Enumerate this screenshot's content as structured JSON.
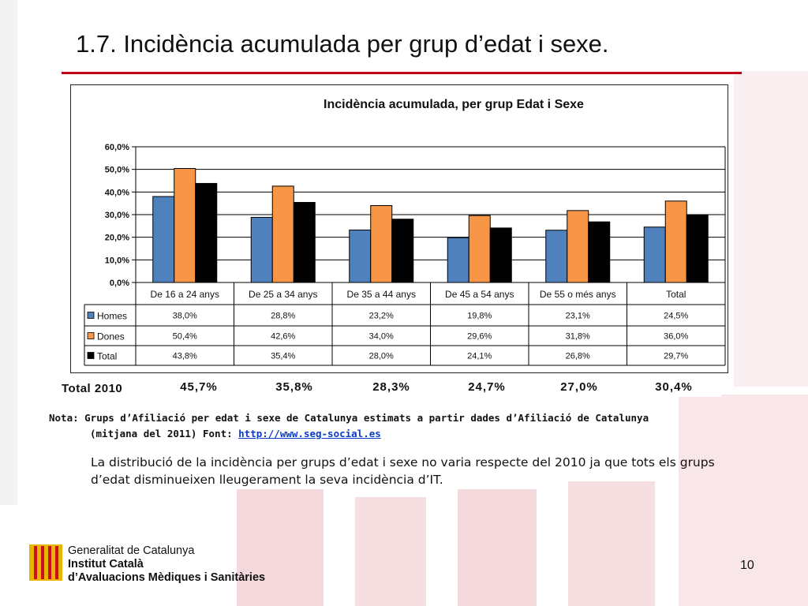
{
  "slide": {
    "title": "1.7. Incidència acumulada per grup d’edat i sexe.",
    "page_number": "10",
    "accent_color": "#c00018"
  },
  "chart_data": {
    "type": "bar",
    "title": "Incidència acumulada, per grup Edat i Sexe",
    "categories": [
      "De 16 a 24 anys",
      "De 25 a 34 anys",
      "De 35 a 44 anys",
      "De 45 a 54 anys",
      "De 55 o més anys",
      "Total"
    ],
    "series": [
      {
        "name": "Homes",
        "color": "#4f81bd",
        "values": [
          38.0,
          28.8,
          23.2,
          19.8,
          23.1,
          24.5
        ],
        "labels": [
          "38,0%",
          "28,8%",
          "23,2%",
          "19,8%",
          "23,1%",
          "24,5%"
        ]
      },
      {
        "name": "Dones",
        "color": "#f79646",
        "values": [
          50.4,
          42.6,
          34.0,
          29.6,
          31.8,
          36.0
        ],
        "labels": [
          "50,4%",
          "42,6%",
          "34,0%",
          "29,6%",
          "31,8%",
          "36,0%"
        ]
      },
      {
        "name": "Total",
        "color": "#000000",
        "values": [
          43.8,
          35.4,
          28.0,
          24.1,
          26.8,
          29.7
        ],
        "labels": [
          "43,8%",
          "35,4%",
          "28,0%",
          "24,1%",
          "26,8%",
          "29,7%"
        ]
      }
    ],
    "ylim": [
      0,
      60
    ],
    "yticks": [
      "0,0%",
      "10,0%",
      "20,0%",
      "30,0%",
      "40,0%",
      "50,0%",
      "60,0%"
    ],
    "grid": true,
    "legend": "data-table"
  },
  "total_2010": {
    "label": "Total 2010",
    "values": [
      "45,7%",
      "35,8%",
      "28,3%",
      "24,7%",
      "27,0%",
      "30,4%"
    ]
  },
  "note": {
    "line1": "Nota: Grups d’Afiliació per edat i sexe de Catalunya estimats a partir dades d’Afiliació de Catalunya",
    "line2_prefix": "(mitjana del 2011) Font: ",
    "link_text": "http://www.seg-social.es"
  },
  "body": {
    "text": "La distribució de la incidència per grups d’edat i sexe no varia respecte del 2010 ja que tots els grups d’edat disminueixen lleugerament la seva incidència d’IT."
  },
  "footer": {
    "org_line1": "Generalitat de Catalunya",
    "org_line2": "Institut Català",
    "org_line3": "d’Avaluacions Mèdiques i Sanitàries",
    "logo": "catalan-flag-logo"
  }
}
